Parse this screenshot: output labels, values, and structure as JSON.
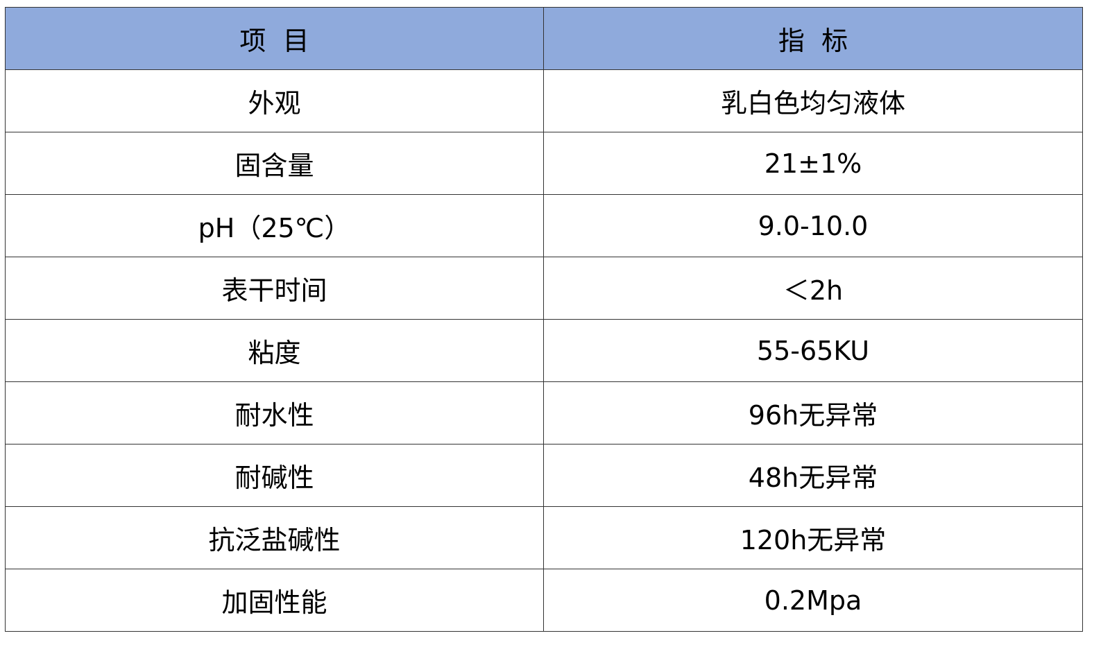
{
  "header": {
    "col1": "项  目",
    "col2": "指  标",
    "background_color": "#8FAADC"
  },
  "rows": [
    {
      "item": "外观",
      "value": "乳白色均匀液体"
    },
    {
      "item": "固含量",
      "value": "21±1%"
    },
    {
      "item": "pH（25℃）",
      "value": "9.0-10.0"
    },
    {
      "item": "表干时间",
      "value": "＜2h"
    },
    {
      "item": "粘度",
      "value": "55-65KU"
    },
    {
      "item": "耐水性",
      "value": "96h无异常"
    },
    {
      "item": "耐碱性",
      "value": "48h无异常"
    },
    {
      "item": "抗泛盐碱性",
      "value": "120h无异常"
    },
    {
      "item": "加固性能",
      "value": "0.2Mpa"
    }
  ]
}
